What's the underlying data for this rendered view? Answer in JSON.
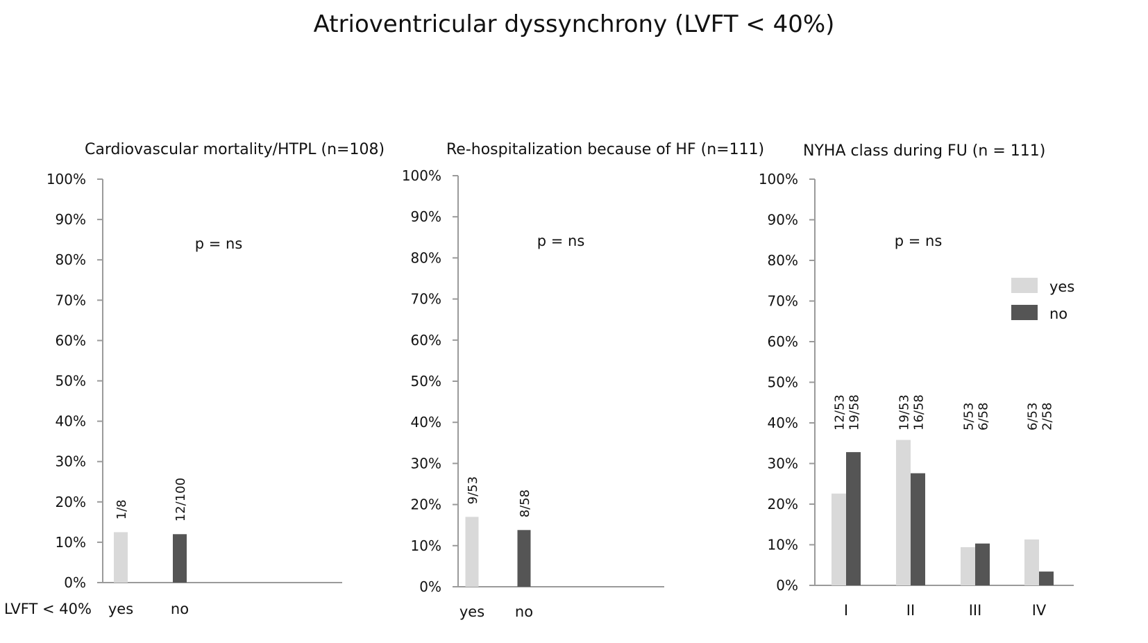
{
  "title": "Atrioventricular dyssynchrony (LVFT < 40%)",
  "xaxis_row_label": "LVFT < 40%",
  "colors": {
    "yes": "#d9d9d9",
    "no": "#555555",
    "axis": "#9a9a9a"
  },
  "legend": {
    "yes": "yes",
    "no": "no"
  },
  "ytick_labels": [
    "0%",
    "10%",
    "20%",
    "30%",
    "40%",
    "50%",
    "60%",
    "70%",
    "80%",
    "90%",
    "100%"
  ],
  "chart_data": [
    {
      "type": "bar",
      "title": "Cardiovascular mortality/HTPL (n=108)",
      "annotation": "p = ns",
      "ylim": [
        0,
        100
      ],
      "categories": [
        "yes",
        "no"
      ],
      "series": [
        {
          "name": "yes",
          "values": [
            12.5,
            null
          ],
          "labels": [
            "1/8",
            null
          ]
        },
        {
          "name": "no",
          "values": [
            null,
            12
          ],
          "labels": [
            null,
            "12/100"
          ]
        }
      ]
    },
    {
      "type": "bar",
      "title": "Re-hospitalization because of HF (n=111)",
      "annotation": "p = ns",
      "ylim": [
        0,
        100
      ],
      "categories": [
        "yes",
        "no"
      ],
      "series": [
        {
          "name": "yes",
          "values": [
            17,
            null
          ],
          "labels": [
            "9/53",
            null
          ]
        },
        {
          "name": "no",
          "values": [
            null,
            13.8
          ],
          "labels": [
            null,
            "8/58"
          ]
        }
      ]
    },
    {
      "type": "bar",
      "title": "NYHA class during FU (n = 111)",
      "annotation": "p = ns",
      "ylim": [
        0,
        100
      ],
      "legend": "right",
      "categories": [
        "I",
        "II",
        "III",
        "IV"
      ],
      "series": [
        {
          "name": "yes",
          "values": [
            22.6,
            35.8,
            9.4,
            11.3
          ],
          "labels": [
            "12/53",
            "19/53",
            "5/53",
            "6/53"
          ]
        },
        {
          "name": "no",
          "values": [
            32.8,
            27.6,
            10.3,
            3.4
          ],
          "labels": [
            "19/58",
            "16/58",
            "6/58",
            "2/58"
          ]
        }
      ]
    }
  ]
}
